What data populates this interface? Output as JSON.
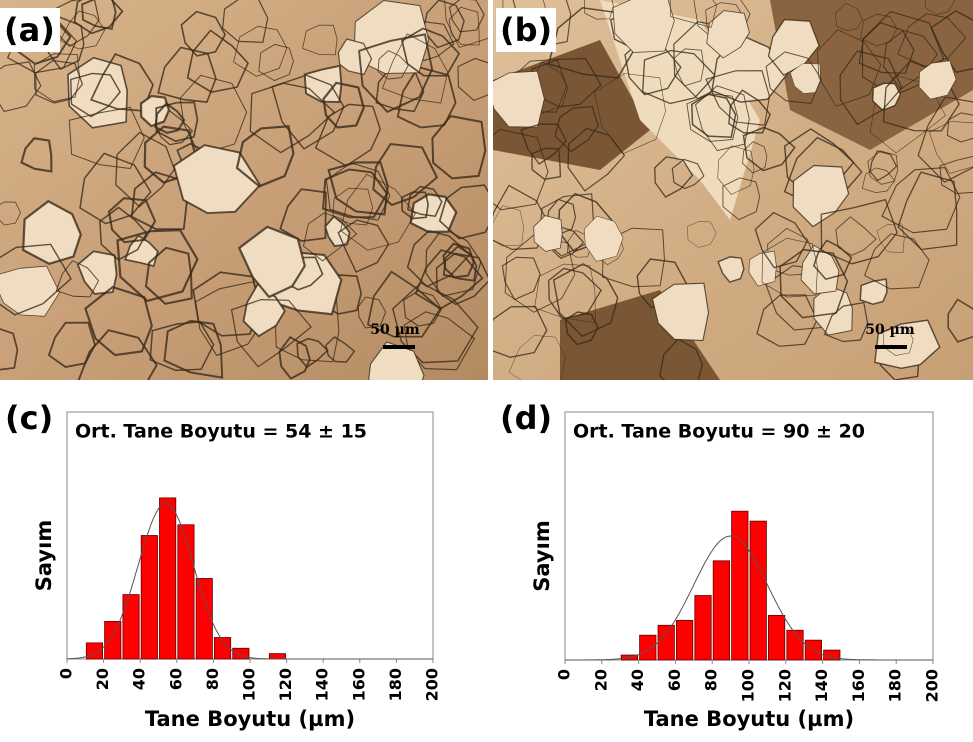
{
  "panels": [
    {
      "label": "(a)",
      "scale_bar": "50 µm"
    },
    {
      "label": "(b)",
      "scale_bar": "50 µm"
    }
  ],
  "chart_data": [
    {
      "type": "histogram",
      "panel_label": "(c)",
      "title": "Ort. Tane Boyutu = 54 ± 15",
      "x_label": "Tane Boyutu (µm)",
      "y_label": "Sayım",
      "bins": [
        10,
        20,
        30,
        40,
        50,
        60,
        70,
        80,
        90,
        100,
        110,
        120
      ],
      "counts": [
        3,
        7,
        12,
        23,
        30,
        25,
        15,
        4,
        2,
        0,
        1
      ],
      "color": "#ff0000",
      "xlim": [
        0,
        200
      ],
      "xticks": [
        0,
        20,
        40,
        60,
        80,
        100,
        120,
        140,
        160,
        180,
        200
      ],
      "ylim": [
        0,
        46
      ],
      "fit": {
        "mean": 54,
        "sd": 15,
        "peak": 29
      }
    },
    {
      "type": "histogram",
      "panel_label": "(d)",
      "title": "Ort. Tane Boyutu = 90 ± 20",
      "x_label": "Tane Boyutu (µm)",
      "y_label": "Sayım",
      "bins": [
        30,
        40,
        50,
        60,
        70,
        80,
        90,
        100,
        110,
        120,
        130,
        140,
        150
      ],
      "counts": [
        1,
        5,
        7,
        8,
        13,
        20,
        30,
        28,
        9,
        6,
        4,
        2
      ],
      "color": "#ff0000",
      "xlim": [
        0,
        200
      ],
      "xticks": [
        0,
        20,
        40,
        60,
        80,
        100,
        120,
        140,
        160,
        180,
        200
      ],
      "ylim": [
        0,
        50
      ],
      "fit": {
        "mean": 90,
        "sd": 20,
        "peak": 25
      }
    }
  ]
}
